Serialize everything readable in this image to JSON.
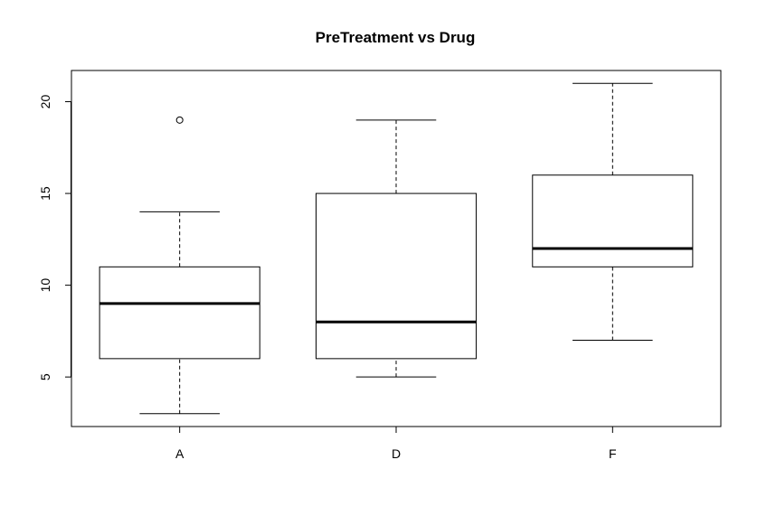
{
  "chart_data": {
    "type": "boxplot",
    "title": "PreTreatment vs Drug",
    "xlabel": "",
    "ylabel": "",
    "categories": [
      "A",
      "D",
      "F"
    ],
    "boxes": [
      {
        "category": "A",
        "whisker_low": 3,
        "q1": 6,
        "median": 9,
        "q3": 11,
        "whisker_high": 14,
        "outliers": [
          19
        ]
      },
      {
        "category": "D",
        "whisker_low": 5,
        "q1": 6,
        "median": 8,
        "q3": 15,
        "whisker_high": 19,
        "outliers": []
      },
      {
        "category": "F",
        "whisker_low": 7,
        "q1": 11,
        "median": 12,
        "q3": 16,
        "whisker_high": 21,
        "outliers": []
      }
    ],
    "ylim": [
      2.3,
      21.7
    ],
    "yticks": [
      5,
      10,
      15,
      20
    ],
    "grid": false,
    "legend": "none"
  }
}
